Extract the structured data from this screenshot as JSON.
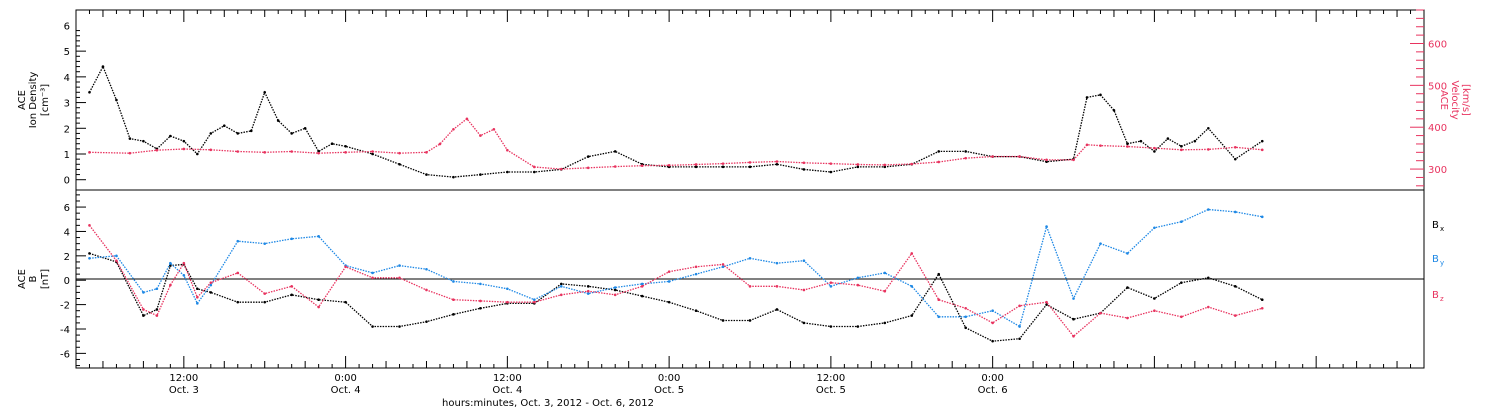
{
  "colors": {
    "black": "#000000",
    "pink": "#e8335f",
    "blue": "#1e88e5"
  },
  "chart_data": [
    {
      "type": "scatter",
      "panel": "top",
      "ylabel_left": [
        "ACE",
        "Ion Density",
        "[cm⁻³]"
      ],
      "ylabel_right": [
        "ACE",
        "Velocity",
        "[km/s]"
      ],
      "ylim_left": [
        -0.4,
        6.6
      ],
      "yticks_left": [
        0,
        1,
        2,
        3,
        4,
        5,
        6
      ],
      "ylim_right": [
        250,
        680
      ],
      "yticks_right": [
        300,
        400,
        500,
        600
      ],
      "series": [
        {
          "key": "density",
          "color": "#000000",
          "axis": "left",
          "x": [
            5,
            6,
            7,
            8,
            9,
            10,
            11,
            12,
            13,
            14,
            15,
            16,
            17,
            18,
            19,
            20,
            21,
            22,
            23,
            24,
            26,
            28,
            30,
            32,
            34,
            36,
            38,
            40,
            42,
            44,
            46,
            48,
            50,
            52,
            54,
            56,
            58,
            60,
            62,
            64,
            66,
            68,
            70,
            72,
            74,
            76,
            78,
            79,
            80,
            81,
            82,
            83,
            84,
            85,
            86,
            87,
            88,
            90,
            92
          ],
          "y": [
            3.4,
            4.4,
            3.1,
            1.6,
            1.5,
            1.2,
            1.7,
            1.5,
            1.0,
            1.8,
            2.1,
            1.8,
            1.9,
            3.4,
            2.3,
            1.8,
            2.0,
            1.1,
            1.4,
            1.3,
            1.0,
            0.6,
            0.2,
            0.1,
            0.2,
            0.3,
            0.3,
            0.4,
            0.9,
            1.1,
            0.6,
            0.5,
            0.5,
            0.5,
            0.5,
            0.6,
            0.4,
            0.3,
            0.5,
            0.5,
            0.6,
            1.1,
            1.1,
            0.9,
            0.9,
            0.7,
            0.8,
            3.2,
            3.3,
            2.7,
            1.4,
            1.5,
            1.1,
            1.6,
            1.3,
            1.5,
            2.0,
            0.8,
            1.5
          ]
        },
        {
          "key": "velocity",
          "color": "#e8335f",
          "axis": "right",
          "x": [
            5,
            8,
            10,
            12,
            14,
            16,
            18,
            20,
            22,
            24,
            26,
            28,
            30,
            31,
            32,
            33,
            34,
            35,
            36,
            38,
            40,
            42,
            44,
            46,
            48,
            50,
            52,
            54,
            56,
            58,
            60,
            62,
            64,
            66,
            68,
            70,
            72,
            74,
            76,
            78,
            79,
            80,
            82,
            84,
            86,
            88,
            90,
            92
          ],
          "y": [
            340,
            338,
            345,
            348,
            346,
            342,
            340,
            342,
            338,
            340,
            342,
            338,
            340,
            360,
            395,
            420,
            380,
            395,
            345,
            305,
            300,
            303,
            306,
            308,
            309,
            311,
            313,
            316,
            318,
            315,
            313,
            311,
            310,
            312,
            317,
            326,
            330,
            330,
            322,
            322,
            358,
            356,
            354,
            350,
            346,
            347,
            352,
            346
          ]
        }
      ]
    },
    {
      "type": "scatter",
      "panel": "bottom",
      "ylabel_left": [
        "ACE",
        "B",
        "[nT]"
      ],
      "ylim": [
        -7.2,
        7.4
      ],
      "yticks": [
        -6,
        -4,
        -2,
        0,
        2,
        4,
        6
      ],
      "legend": [
        {
          "base": "B",
          "sub": "x",
          "color": "#000000"
        },
        {
          "base": "B",
          "sub": "y",
          "color": "#1e88e5"
        },
        {
          "base": "B",
          "sub": "z",
          "color": "#e8335f"
        }
      ],
      "series": [
        {
          "key": "Bx",
          "color": "#000000",
          "x": [
            5,
            7,
            9,
            10,
            11,
            12,
            13,
            14,
            16,
            18,
            20,
            22,
            24,
            26,
            28,
            30,
            32,
            34,
            36,
            38,
            40,
            42,
            44,
            46,
            48,
            50,
            52,
            54,
            56,
            58,
            60,
            62,
            64,
            66,
            68,
            70,
            72,
            74,
            76,
            78,
            80,
            82,
            84,
            86,
            88,
            90,
            92
          ],
          "y": [
            2.2,
            1.5,
            -2.9,
            -2.4,
            1.2,
            1.3,
            -0.7,
            -1.0,
            -1.8,
            -1.8,
            -1.2,
            -1.6,
            -1.8,
            -3.8,
            -3.8,
            -3.4,
            -2.8,
            -2.3,
            -1.9,
            -1.9,
            -0.3,
            -0.5,
            -0.8,
            -1.3,
            -1.8,
            -2.5,
            -3.3,
            -3.3,
            -2.4,
            -3.5,
            -3.8,
            -3.8,
            -3.5,
            -2.9,
            0.5,
            -3.9,
            -5.0,
            -4.8,
            -2.0,
            -3.2,
            -2.7,
            -0.6,
            -1.5,
            -0.2,
            0.2,
            -0.5,
            -1.6
          ]
        },
        {
          "key": "By",
          "color": "#1e88e5",
          "x": [
            5,
            7,
            9,
            10,
            11,
            12,
            13,
            14,
            16,
            18,
            20,
            22,
            24,
            26,
            28,
            30,
            32,
            34,
            36,
            38,
            40,
            42,
            44,
            46,
            48,
            50,
            52,
            54,
            56,
            58,
            60,
            62,
            64,
            66,
            68,
            70,
            72,
            74,
            76,
            78,
            80,
            82,
            84,
            86,
            88,
            90,
            92
          ],
          "y": [
            1.8,
            2.0,
            -1.0,
            -0.7,
            1.4,
            0.4,
            -1.9,
            -0.4,
            3.2,
            3.0,
            3.4,
            3.6,
            1.2,
            0.6,
            1.2,
            0.9,
            -0.1,
            -0.3,
            -0.7,
            -1.6,
            -0.5,
            -1.1,
            -0.6,
            -0.3,
            -0.1,
            0.5,
            1.1,
            1.8,
            1.4,
            1.6,
            -0.5,
            0.2,
            0.6,
            -0.5,
            -3.0,
            -3.0,
            -2.5,
            -3.8,
            4.4,
            -1.5,
            3.0,
            2.2,
            4.3,
            4.8,
            5.8,
            5.6,
            5.2
          ]
        },
        {
          "key": "Bz",
          "color": "#e8335f",
          "x": [
            5,
            7,
            9,
            10,
            11,
            12,
            13,
            14,
            16,
            18,
            20,
            22,
            24,
            26,
            28,
            30,
            32,
            34,
            36,
            38,
            40,
            42,
            44,
            46,
            48,
            50,
            52,
            54,
            56,
            58,
            60,
            62,
            64,
            66,
            68,
            70,
            72,
            74,
            76,
            78,
            80,
            82,
            84,
            86,
            88,
            90,
            92
          ],
          "y": [
            4.5,
            1.6,
            -2.4,
            -2.9,
            -0.4,
            1.4,
            -1.4,
            -0.2,
            0.6,
            -1.1,
            -0.5,
            -2.2,
            1.1,
            0.2,
            0.2,
            -0.8,
            -1.6,
            -1.7,
            -1.8,
            -1.8,
            -1.2,
            -0.9,
            -1.2,
            -0.5,
            0.7,
            1.1,
            1.3,
            -0.5,
            -0.5,
            -0.8,
            -0.2,
            -0.4,
            -0.9,
            2.2,
            -1.6,
            -2.3,
            -3.5,
            -2.1,
            -1.8,
            -4.6,
            -2.7,
            -3.1,
            -2.5,
            -3.0,
            -2.2,
            -2.9,
            -2.3
          ]
        }
      ]
    }
  ],
  "x_axis": {
    "min": 4,
    "max": 104,
    "ticks": [
      {
        "x": 12,
        "line1": "12:00",
        "line2": "Oct. 3"
      },
      {
        "x": 24,
        "line1": "0:00",
        "line2": "Oct. 4"
      },
      {
        "x": 36,
        "line1": "12:00",
        "line2": "Oct. 4"
      },
      {
        "x": 48,
        "line1": "0:00",
        "line2": "Oct. 5"
      },
      {
        "x": 60,
        "line1": "12:00",
        "line2": "Oct. 5"
      },
      {
        "x": 72,
        "line1": "0:00",
        "line2": "Oct. 6"
      }
    ],
    "label": "hours:minutes, Oct.  3, 2012 - Oct.  6, 2012"
  }
}
